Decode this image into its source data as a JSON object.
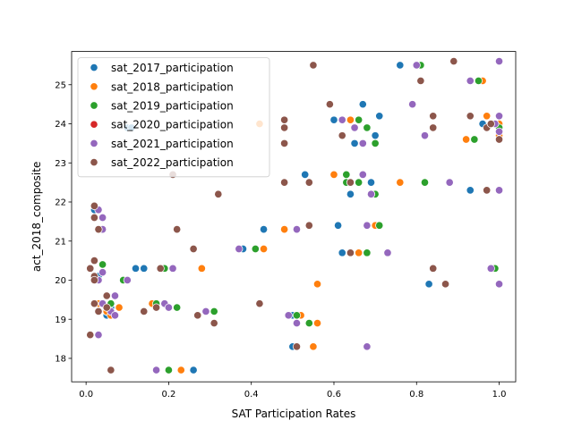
{
  "chart_data": {
    "type": "scatter",
    "title": "",
    "xlabel": "SAT Participation Rates",
    "ylabel": "act_2018_composite",
    "xlim": [
      -0.035,
      1.04
    ],
    "ylim": [
      17.4,
      25.85
    ],
    "xticks": [
      0.0,
      0.2,
      0.4,
      0.6,
      0.8,
      1.0
    ],
    "xtick_labels": [
      "0.0",
      "0.2",
      "0.4",
      "0.6",
      "0.8",
      "1.0"
    ],
    "yticks": [
      18,
      19,
      20,
      21,
      22,
      23,
      24,
      25
    ],
    "ytick_labels": [
      "18",
      "19",
      "20",
      "21",
      "22",
      "23",
      "24",
      "25"
    ],
    "grid": false,
    "legend_position": "top-left",
    "series": [
      {
        "name": "sat_2017_participation",
        "color": "#1f77b4",
        "points": [
          [
            0.05,
            19.1
          ],
          [
            0.03,
            19.2
          ],
          [
            0.04,
            19.4
          ],
          [
            0.02,
            20.0
          ],
          [
            0.03,
            20.1
          ],
          [
            0.06,
            19.3
          ],
          [
            0.09,
            20.0
          ],
          [
            0.12,
            20.3
          ],
          [
            0.14,
            20.3
          ],
          [
            0.1,
            23.9
          ],
          [
            0.11,
            23.9
          ],
          [
            0.02,
            21.8
          ],
          [
            0.26,
            17.7
          ],
          [
            0.38,
            20.8
          ],
          [
            0.43,
            21.3
          ],
          [
            0.5,
            19.1
          ],
          [
            0.5,
            18.3
          ],
          [
            0.53,
            22.7
          ],
          [
            0.61,
            21.4
          ],
          [
            0.62,
            20.7
          ],
          [
            0.6,
            24.1
          ],
          [
            0.65,
            23.5
          ],
          [
            0.64,
            22.2
          ],
          [
            0.67,
            24.5
          ],
          [
            0.69,
            22.5
          ],
          [
            0.7,
            23.7
          ],
          [
            0.71,
            24.2
          ],
          [
            0.76,
            25.5
          ],
          [
            0.83,
            19.9
          ],
          [
            0.93,
            22.3
          ],
          [
            0.96,
            24.0
          ],
          [
            1.0,
            23.8
          ],
          [
            1.0,
            24.0
          ]
        ]
      },
      {
        "name": "sat_2018_participation",
        "color": "#ff7f0e",
        "points": [
          [
            0.02,
            20.0
          ],
          [
            0.03,
            19.4
          ],
          [
            0.05,
            19.2
          ],
          [
            0.06,
            19.1
          ],
          [
            0.08,
            19.3
          ],
          [
            0.16,
            19.4
          ],
          [
            0.23,
            17.7
          ],
          [
            0.28,
            20.3
          ],
          [
            0.42,
            24.0
          ],
          [
            0.43,
            20.8
          ],
          [
            0.48,
            21.3
          ],
          [
            0.52,
            19.1
          ],
          [
            0.55,
            18.3
          ],
          [
            0.56,
            18.9
          ],
          [
            0.56,
            19.9
          ],
          [
            0.6,
            22.7
          ],
          [
            0.63,
            22.5
          ],
          [
            0.64,
            24.1
          ],
          [
            0.66,
            20.7
          ],
          [
            0.7,
            21.4
          ],
          [
            0.76,
            22.5
          ],
          [
            0.92,
            23.6
          ],
          [
            0.96,
            25.1
          ],
          [
            0.97,
            24.2
          ],
          [
            1.0,
            23.7
          ],
          [
            1.0,
            24.0
          ]
        ]
      },
      {
        "name": "sat_2019_participation",
        "color": "#2ca02c",
        "points": [
          [
            0.03,
            20.0
          ],
          [
            0.04,
            20.4
          ],
          [
            0.06,
            19.4
          ],
          [
            0.09,
            20.0
          ],
          [
            0.17,
            19.4
          ],
          [
            0.19,
            20.3
          ],
          [
            0.2,
            17.7
          ],
          [
            0.22,
            19.3
          ],
          [
            0.31,
            19.2
          ],
          [
            0.41,
            20.8
          ],
          [
            0.51,
            19.1
          ],
          [
            0.54,
            18.9
          ],
          [
            0.63,
            22.7
          ],
          [
            0.63,
            22.5
          ],
          [
            0.66,
            22.5
          ],
          [
            0.66,
            24.1
          ],
          [
            0.68,
            20.7
          ],
          [
            0.68,
            23.9
          ],
          [
            0.7,
            22.2
          ],
          [
            0.7,
            23.5
          ],
          [
            0.71,
            21.4
          ],
          [
            0.81,
            25.5
          ],
          [
            0.82,
            22.5
          ],
          [
            0.94,
            23.6
          ],
          [
            0.95,
            25.1
          ],
          [
            0.99,
            20.3
          ],
          [
            1.0,
            23.9
          ]
        ]
      },
      {
        "name": "sat_2020_participation",
        "color": "#d62728",
        "points": []
      },
      {
        "name": "sat_2021_participation",
        "color": "#9467bd",
        "points": [
          [
            0.01,
            18.6
          ],
          [
            0.03,
            18.6
          ],
          [
            0.02,
            21.9
          ],
          [
            0.03,
            21.8
          ],
          [
            0.04,
            21.6
          ],
          [
            0.04,
            21.3
          ],
          [
            0.04,
            20.2
          ],
          [
            0.03,
            20.0
          ],
          [
            0.04,
            19.4
          ],
          [
            0.06,
            19.2
          ],
          [
            0.07,
            19.6
          ],
          [
            0.07,
            19.1
          ],
          [
            0.1,
            20.0
          ],
          [
            0.17,
            17.7
          ],
          [
            0.19,
            19.4
          ],
          [
            0.2,
            19.3
          ],
          [
            0.21,
            20.3
          ],
          [
            0.29,
            19.2
          ],
          [
            0.37,
            20.8
          ],
          [
            0.49,
            19.1
          ],
          [
            0.51,
            21.3
          ],
          [
            0.51,
            18.9
          ],
          [
            0.62,
            24.1
          ],
          [
            0.65,
            23.9
          ],
          [
            0.67,
            22.7
          ],
          [
            0.67,
            23.5
          ],
          [
            0.68,
            21.4
          ],
          [
            0.68,
            18.3
          ],
          [
            0.69,
            22.2
          ],
          [
            0.73,
            20.7
          ],
          [
            0.79,
            24.5
          ],
          [
            0.8,
            25.5
          ],
          [
            0.82,
            23.7
          ],
          [
            0.88,
            22.5
          ],
          [
            0.93,
            25.1
          ],
          [
            0.98,
            20.3
          ],
          [
            0.99,
            24.0
          ],
          [
            1.0,
            25.6
          ],
          [
            1.0,
            24.2
          ],
          [
            1.0,
            23.8
          ],
          [
            1.0,
            22.3
          ],
          [
            1.0,
            19.9
          ]
        ]
      },
      {
        "name": "sat_2022_participation",
        "color": "#8c564b",
        "points": [
          [
            0.01,
            18.6
          ],
          [
            0.01,
            20.3
          ],
          [
            0.02,
            20.5
          ],
          [
            0.02,
            20.1
          ],
          [
            0.02,
            20.0
          ],
          [
            0.02,
            19.4
          ],
          [
            0.02,
            21.9
          ],
          [
            0.02,
            21.6
          ],
          [
            0.03,
            21.3
          ],
          [
            0.03,
            19.2
          ],
          [
            0.05,
            19.6
          ],
          [
            0.05,
            19.3
          ],
          [
            0.06,
            17.7
          ],
          [
            0.14,
            19.2
          ],
          [
            0.17,
            19.3
          ],
          [
            0.18,
            20.3
          ],
          [
            0.21,
            22.7
          ],
          [
            0.22,
            21.3
          ],
          [
            0.26,
            20.8
          ],
          [
            0.27,
            19.1
          ],
          [
            0.31,
            18.9
          ],
          [
            0.32,
            22.2
          ],
          [
            0.42,
            19.4
          ],
          [
            0.48,
            24.1
          ],
          [
            0.48,
            23.9
          ],
          [
            0.48,
            23.5
          ],
          [
            0.48,
            22.5
          ],
          [
            0.51,
            18.3
          ],
          [
            0.54,
            22.5
          ],
          [
            0.54,
            21.4
          ],
          [
            0.55,
            25.5
          ],
          [
            0.59,
            24.5
          ],
          [
            0.62,
            23.7
          ],
          [
            0.64,
            22.5
          ],
          [
            0.64,
            20.7
          ],
          [
            0.81,
            25.1
          ],
          [
            0.84,
            24.2
          ],
          [
            0.84,
            23.9
          ],
          [
            0.84,
            20.3
          ],
          [
            0.87,
            19.9
          ],
          [
            0.89,
            25.6
          ],
          [
            0.93,
            24.2
          ],
          [
            0.97,
            22.3
          ],
          [
            0.97,
            23.9
          ],
          [
            0.98,
            24.0
          ],
          [
            1.0,
            23.6
          ]
        ]
      }
    ]
  }
}
